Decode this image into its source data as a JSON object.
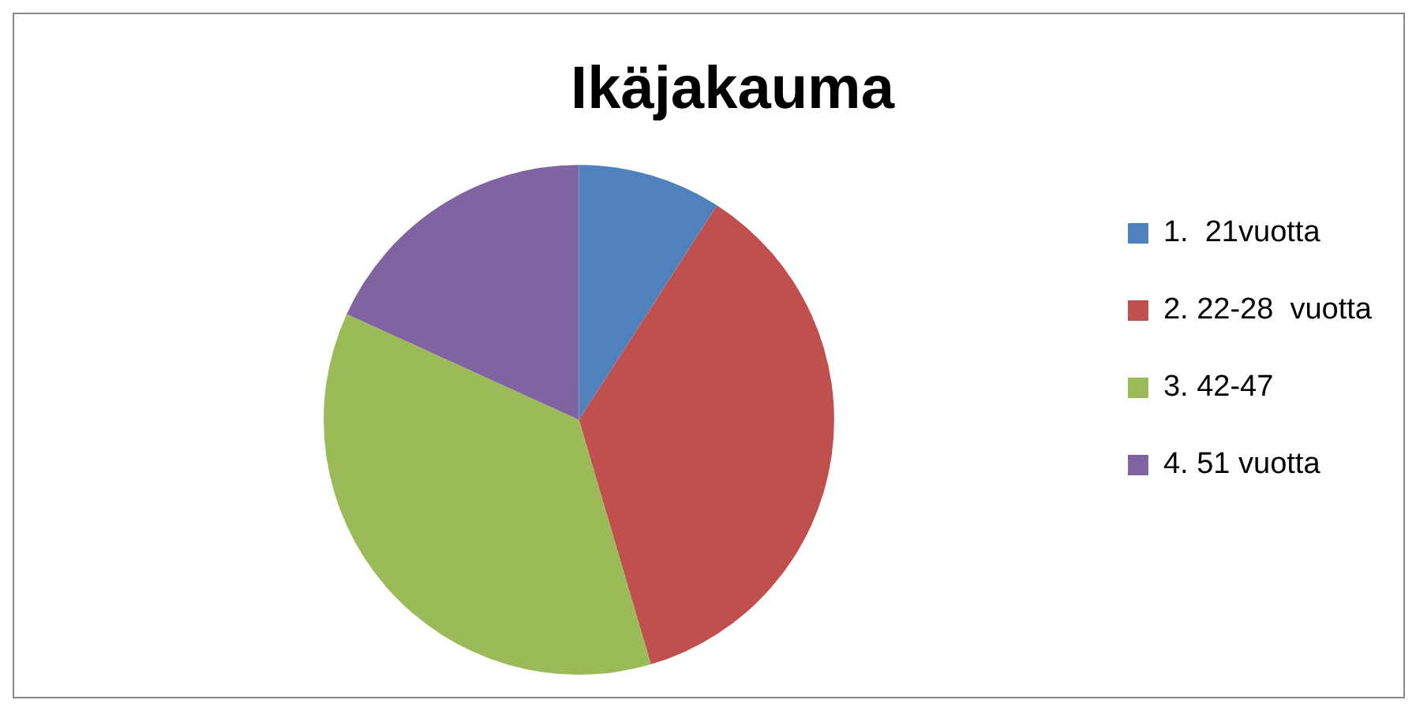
{
  "chart_data": {
    "type": "pie",
    "title": "Ikäjakauma",
    "categories": [
      "1.  21vuotta",
      "2. 22-28  vuotta",
      "3. 42-47",
      "4. 51 vuotta"
    ],
    "values": [
      9.09,
      36.36,
      36.36,
      18.19
    ],
    "colors": [
      "#4f81bd",
      "#c0504d",
      "#9bbb59",
      "#8064a2"
    ],
    "legend": "right"
  }
}
